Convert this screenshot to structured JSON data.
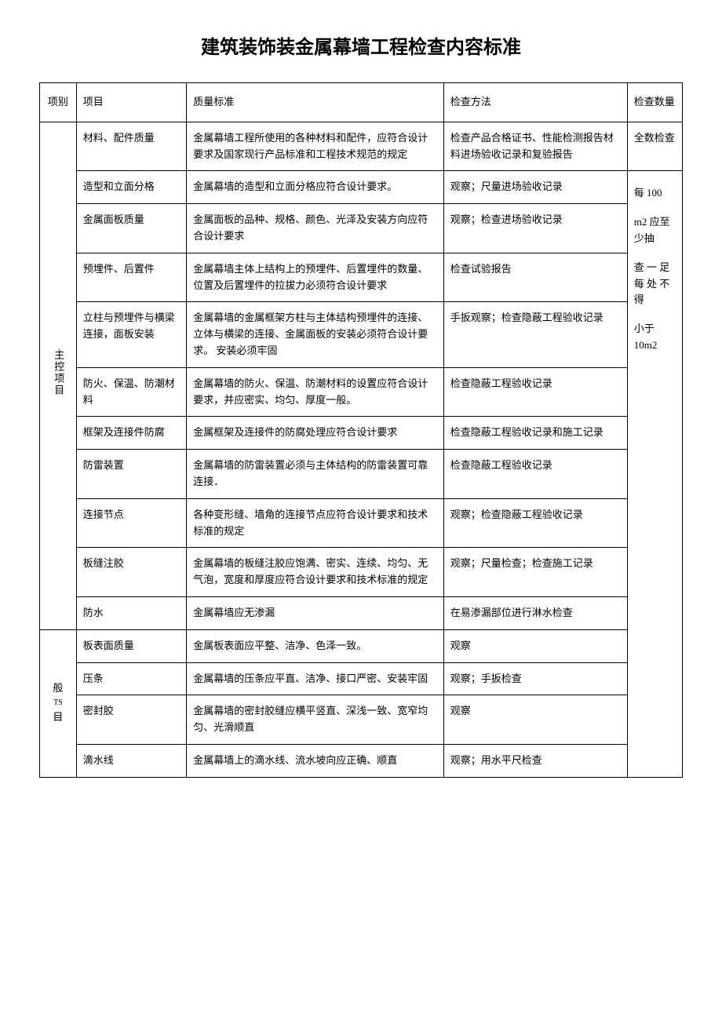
{
  "title": "建筑装饰装金属幕墙工程检查内容标准",
  "headers": {
    "category": "项别",
    "item": "项目",
    "standard": "质量标准",
    "method": "检查方法",
    "quantity": "检查数量"
  },
  "categories": {
    "main": "主控项目",
    "general_line1": "般",
    "general_line2": "TS",
    "general_line3": "目"
  },
  "rows": [
    {
      "item": "材料、配件质量",
      "standard": "金属幕墙工程所使用的各种材料和配件，应符合设计要求及国家现行产品标准和工程技术规范的规定",
      "method": "检查产品合格证书、性能检测报告材料进场验收记录和复验报告"
    },
    {
      "item": "造型和立面分格",
      "standard": "金属幕墙的造型和立面分格应符合设计要求。",
      "method": "观察；尺量进场验收记录"
    },
    {
      "item": "金属面板质量",
      "standard": "金属面板的品种、规格、颜色、光泽及安装方向应符合设计要求",
      "method": "观察；检查进场验收记录"
    },
    {
      "item": "预埋件、后置件",
      "standard": "金属幕墙主体上结构上的预埋件、后置埋件的数量、位置及后置埋件的拉拔力必须符合设计要求",
      "method": "检查试验报告"
    },
    {
      "item": "立柱与预埋件与横梁连接，面板安装",
      "standard": "金属幕墙的金属框架方柱与主体结构预埋件的连接、立体与横梁的连接、金属面板的安装必须符合设计要求。\n安装必须牢固",
      "method": "手扳观察；检查隐蔽工程验收记录"
    },
    {
      "item": "防火、保温、防潮材料",
      "standard": "金属幕墙的防火、保温、防潮材料的设置应符合设计要求，并应密实、均匀、厚度一般。",
      "method": "检查隐蔽工程验收记录"
    },
    {
      "item": "框架及连接件防腐",
      "standard": "金属框架及连接件的防腐处理应符合设计要求",
      "method": "检查隐蔽工程验收记录和施工记录"
    },
    {
      "item": "防雷装置",
      "standard": "金属幕墙的防雷装置必须与主体结构的防雷装置可靠连接．",
      "method": "检查隐蔽工程验收记录"
    },
    {
      "item": "连接节点",
      "standard": "各种变形缝、墙角的连接节点应符合设计要求和技术标准的规定",
      "method": "观察；检查隐蔽工程验收记录"
    },
    {
      "item": "板缝注胶",
      "standard": "金属幕墙的板缝注胶应饱满、密实、连续、均匀、无气泡，宽度和厚度应符合设计要求和技术标准的规定",
      "method": "观察；尺量检查；检查施工记录"
    },
    {
      "item": "防水",
      "standard": "金属幕墙应无渗漏",
      "method": "在易渗漏部位进行淋水检查"
    },
    {
      "item": "板表面质量",
      "standard": "金属板表面应平整、洁净、色泽一致。",
      "method": "观察"
    },
    {
      "item": "压条",
      "standard": "金属幕墙的压条应平直、洁净、接口严密、安装牢固",
      "method": "观察；手扳检查"
    },
    {
      "item": "密封胶",
      "standard": "金属幕墙的密封胶缝应横平竖直、深浅一致、宽窄均匀、光滑顺直",
      "method": "观察"
    },
    {
      "item": "滴水线",
      "standard": "金属幕墙上的滴水线、流水坡向应正确、顺直",
      "method": "观察；用水平尺检查"
    }
  ],
  "quantity": {
    "row0": "全数检查",
    "seg1": "每 100",
    "seg2": "m2 应至少抽",
    "seg3": "查 一 足每 处 不得",
    "seg4": "小于10m2"
  }
}
